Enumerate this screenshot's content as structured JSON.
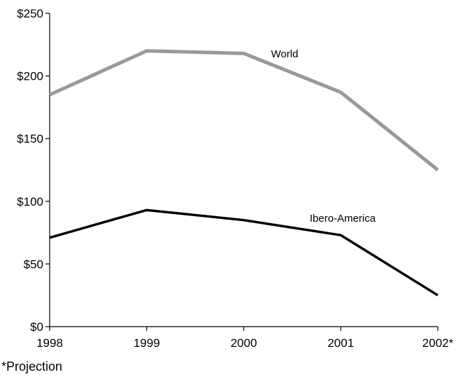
{
  "chart_data": {
    "type": "line",
    "title": "",
    "xlabel": "",
    "ylabel": "",
    "categories": [
      "1998",
      "1999",
      "2000",
      "2001",
      "2002*"
    ],
    "series": [
      {
        "name": "World",
        "values": [
          185,
          220,
          218,
          187,
          125
        ],
        "color": "#999999"
      },
      {
        "name": "Ibero-America",
        "values": [
          71,
          93,
          85,
          73,
          25
        ],
        "color": "#000000"
      }
    ],
    "ylim": [
      0,
      250
    ],
    "yticks": [
      0,
      50,
      100,
      150,
      200,
      250
    ],
    "ytick_labels": [
      "$0",
      "$50",
      "$100",
      "$150",
      "$200",
      "$250"
    ],
    "grid": false,
    "legend": "inline labels"
  },
  "footnote": "*Projection"
}
